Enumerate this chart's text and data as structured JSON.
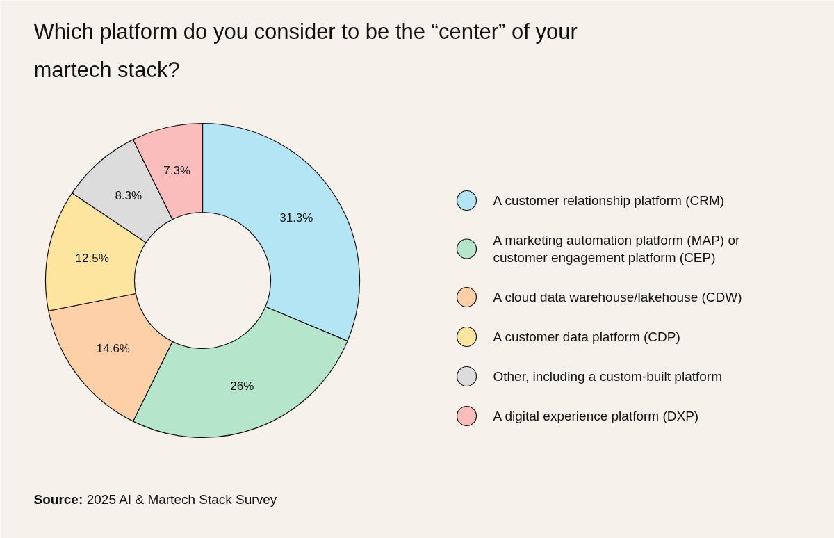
{
  "chart_data": {
    "type": "donut",
    "title": "Which platform do you consider to be the “center” of your martech stack?",
    "categories": [
      "A customer relationship platform (CRM)",
      "A marketing automation platform (MAP) or customer engagement platform (CEP)",
      "A cloud data warehouse/lakehouse (CDW)",
      "A customer data platform (CDP)",
      "Other, including a custom-built platform",
      "A digital experience platform (DXP)"
    ],
    "values": [
      31.3,
      26,
      14.6,
      12.5,
      8.3,
      7.3
    ],
    "colors": [
      "#b3e5f5",
      "#b5e6cc",
      "#fdd0a8",
      "#fde59f",
      "#dcdcdc",
      "#fbbcbc"
    ],
    "value_labels": [
      "31.3%",
      "26%",
      "14.6%",
      "12.5%",
      "8.3%",
      "7.3%"
    ],
    "legend": "right",
    "annotations": [
      "Source: 2025 AI & Martech Stack Survey"
    ]
  }
}
